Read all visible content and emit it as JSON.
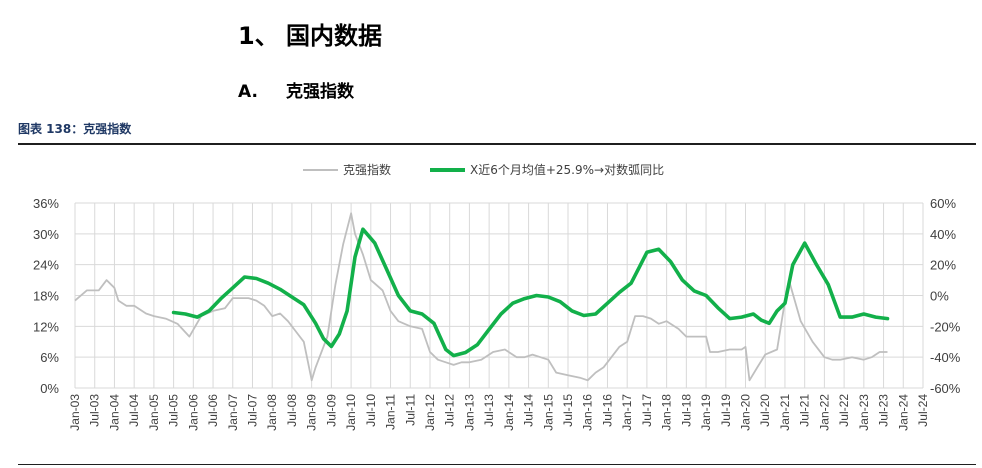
{
  "section": {
    "number": "1、",
    "title": "国内数据"
  },
  "subsection": {
    "number": "A.",
    "title": "克强指数"
  },
  "caption": "图表 138：克强指数",
  "colors": {
    "gray_series": "#bfbfbf",
    "green_series": "#12b04a",
    "caption": "#1f3864",
    "grid": "#d9d9d9"
  },
  "chart_data": {
    "type": "line",
    "legend_position": "top",
    "grid": true,
    "y_left": {
      "ticks": [
        "0%",
        "6%",
        "12%",
        "18%",
        "24%",
        "30%",
        "36%"
      ],
      "range": [
        0,
        36
      ]
    },
    "y_right": {
      "ticks": [
        "-60%",
        "-40%",
        "-20%",
        "0%",
        "20%",
        "40%",
        "60%"
      ],
      "range": [
        -60,
        60
      ]
    },
    "x_ticks": [
      "Jan-03",
      "Jul-03",
      "Jan-04",
      "Jul-04",
      "Jan-05",
      "Jul-05",
      "Jan-06",
      "Jul-06",
      "Jan-07",
      "Jul-07",
      "Jan-08",
      "Jul-08",
      "Jan-09",
      "Jul-09",
      "Jan-10",
      "Jul-10",
      "Jan-11",
      "Jul-11",
      "Jan-12",
      "Jul-12",
      "Jan-13",
      "Jul-13",
      "Jan-14",
      "Jul-14",
      "Jan-15",
      "Jul-15",
      "Jan-16",
      "Jul-16",
      "Jan-17",
      "Jul-17",
      "Jan-18",
      "Jul-18",
      "Jan-19",
      "Jul-19",
      "Jan-20",
      "Jul-20",
      "Jan-21",
      "Jul-21",
      "Jan-22",
      "Jul-22",
      "Jan-23",
      "Jul-23",
      "Jan-24",
      "Jul-24"
    ],
    "series": [
      {
        "name": "克强指数",
        "axis": "left",
        "x": [
          2003.0,
          2003.3,
          2003.6,
          2003.8,
          2004.0,
          2004.1,
          2004.3,
          2004.5,
          2004.8,
          2005.0,
          2005.3,
          2005.6,
          2005.9,
          2006.2,
          2006.5,
          2006.8,
          2007.0,
          2007.2,
          2007.4,
          2007.6,
          2007.8,
          2008.0,
          2008.2,
          2008.4,
          2008.6,
          2008.8,
          2009.0,
          2009.1,
          2009.2,
          2009.4,
          2009.6,
          2009.8,
          2010.0,
          2010.1,
          2010.3,
          2010.5,
          2010.8,
          2011.0,
          2011.2,
          2011.5,
          2011.8,
          2012.0,
          2012.2,
          2012.4,
          2012.6,
          2012.8,
          2013.0,
          2013.3,
          2013.6,
          2013.9,
          2014.2,
          2014.4,
          2014.6,
          2014.8,
          2015.0,
          2015.2,
          2015.5,
          2015.8,
          2016.0,
          2016.2,
          2016.4,
          2016.6,
          2016.8,
          2017.0,
          2017.2,
          2017.4,
          2017.6,
          2017.8,
          2018.0,
          2018.3,
          2018.5,
          2018.8,
          2019.0,
          2019.1,
          2019.3,
          2019.6,
          2019.9,
          2020.0,
          2020.1,
          2020.3,
          2020.5,
          2020.8,
          2021.0,
          2021.1,
          2021.4,
          2021.7,
          2022.0,
          2022.2,
          2022.4,
          2022.7,
          2023.0,
          2023.2,
          2023.4,
          2023.6
        ],
        "values": [
          17,
          19,
          19,
          21,
          19.5,
          17,
          16,
          16,
          14.5,
          14,
          13.5,
          12.5,
          10,
          14,
          15,
          15.5,
          17.5,
          17.5,
          17.5,
          17,
          16,
          14,
          14.5,
          13,
          11,
          9,
          1.5,
          4,
          6,
          10,
          20,
          28,
          34,
          30,
          26,
          21,
          19,
          15,
          13,
          12,
          11.5,
          7,
          5.5,
          5,
          4.5,
          5,
          5,
          5.5,
          7,
          7.5,
          6,
          6,
          6.5,
          6,
          5.5,
          3,
          2.5,
          2,
          1.5,
          3,
          4,
          6,
          8,
          9,
          14,
          14,
          13.5,
          12.5,
          13,
          11.5,
          10,
          10,
          10,
          7,
          7,
          7.5,
          7.5,
          8,
          1.5,
          4,
          6.5,
          7.5,
          17,
          21,
          13,
          9,
          6,
          5.5,
          5.5,
          6,
          5.5,
          6,
          7,
          7
        ]
      },
      {
        "name": "X近6个月均值+25.9%→对数弧同比",
        "axis": "right",
        "x": [
          2005.5,
          2005.8,
          2006.1,
          2006.4,
          2006.7,
          2007.0,
          2007.3,
          2007.6,
          2007.9,
          2008.2,
          2008.5,
          2008.8,
          2009.1,
          2009.3,
          2009.5,
          2009.7,
          2009.9,
          2010.1,
          2010.3,
          2010.6,
          2010.9,
          2011.2,
          2011.5,
          2011.8,
          2012.1,
          2012.4,
          2012.6,
          2012.9,
          2013.2,
          2013.5,
          2013.8,
          2014.1,
          2014.4,
          2014.7,
          2015.0,
          2015.3,
          2015.6,
          2015.9,
          2016.2,
          2016.5,
          2016.8,
          2017.1,
          2017.3,
          2017.5,
          2017.8,
          2018.1,
          2018.4,
          2018.7,
          2019.0,
          2019.3,
          2019.6,
          2019.9,
          2020.2,
          2020.4,
          2020.6,
          2020.8,
          2021.0,
          2021.2,
          2021.5,
          2021.8,
          2022.1,
          2022.4,
          2022.7,
          2023.0,
          2023.3,
          2023.6
        ],
        "values": [
          -11,
          -12,
          -14,
          -10,
          -2,
          5,
          12,
          11,
          8,
          4,
          -1,
          -6,
          -18,
          -28,
          -33,
          -25,
          -10,
          25,
          43,
          34,
          17,
          0,
          -10,
          -12,
          -18,
          -35,
          -39,
          -37,
          -32,
          -22,
          -12,
          -5,
          -2,
          0,
          -1,
          -4,
          -10,
          -13,
          -12,
          -5,
          2,
          8,
          18,
          28,
          30,
          22,
          10,
          3,
          0,
          -8,
          -15,
          -14,
          -12,
          -16,
          -18,
          -10,
          -5,
          20,
          34,
          20,
          7,
          -14,
          -14,
          -12,
          -14,
          -15
        ]
      }
    ]
  }
}
